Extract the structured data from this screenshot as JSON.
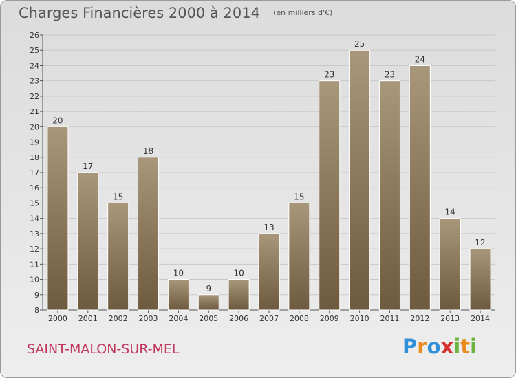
{
  "header": {
    "title": "Charges Financières 2000 à 2014",
    "subtitle": "(en milliers d'€)"
  },
  "footer": {
    "commune": "SAINT-MALON-SUR-MEL",
    "logo_text": "Proxiti"
  },
  "colors": {
    "bar_top": "#a8977b",
    "bar_bottom": "#6e5a3e",
    "commune": "#c03860",
    "grid": "#c8c8c8"
  },
  "chart_data": {
    "type": "bar",
    "title": "Charges Financières 2000 à 2014",
    "subtitle": "(en milliers d'€)",
    "categories": [
      "2000",
      "2001",
      "2002",
      "2003",
      "2004",
      "2005",
      "2006",
      "2007",
      "2008",
      "2009",
      "2010",
      "2011",
      "2012",
      "2013",
      "2014"
    ],
    "values": [
      20,
      17,
      15,
      18,
      10,
      9,
      10,
      13,
      15,
      23,
      25,
      23,
      24,
      14,
      12
    ],
    "ylim": [
      8,
      26
    ],
    "yticks": [
      8,
      9,
      10,
      11,
      12,
      13,
      14,
      15,
      16,
      17,
      18,
      19,
      20,
      21,
      22,
      23,
      24,
      25,
      26
    ],
    "grid": true,
    "xlabel": "",
    "ylabel": ""
  }
}
